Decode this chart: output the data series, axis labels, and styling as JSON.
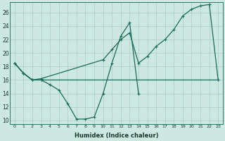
{
  "xlabel": "Humidex (Indice chaleur)",
  "bg_color": "#cce8e0",
  "line_color": "#1a6b5a",
  "grid_color": "#aaccc4",
  "xlim": [
    -0.5,
    23.5
  ],
  "ylim": [
    9.5,
    27.5
  ],
  "xticks": [
    0,
    1,
    2,
    3,
    4,
    5,
    6,
    7,
    8,
    9,
    10,
    11,
    12,
    13,
    14,
    15,
    16,
    17,
    18,
    19,
    20,
    21,
    22,
    23
  ],
  "yticks": [
    10,
    12,
    14,
    16,
    18,
    20,
    22,
    24,
    26
  ],
  "line1_x": [
    0,
    1,
    2,
    3,
    4,
    5,
    6,
    7,
    8,
    9,
    10,
    11,
    12,
    13,
    14
  ],
  "line1_y": [
    18.5,
    17.0,
    16.0,
    16.0,
    15.3,
    14.5,
    12.5,
    10.2,
    10.2,
    10.5,
    14.0,
    18.5,
    22.5,
    24.5,
    14.0
  ],
  "line2_x": [
    0,
    1,
    2,
    3,
    10,
    11,
    12,
    13,
    14,
    15,
    16,
    17,
    18,
    19,
    20,
    21,
    22,
    23
  ],
  "line2_y": [
    18.5,
    17.0,
    16.0,
    16.2,
    19.0,
    20.5,
    22.0,
    23.0,
    18.5,
    19.5,
    21.0,
    22.0,
    23.5,
    25.5,
    26.5,
    27.0,
    27.2,
    16.0
  ],
  "line3_x": [
    0,
    1,
    2,
    3,
    23
  ],
  "line3_y": [
    18.5,
    17.0,
    16.0,
    16.0,
    16.0
  ]
}
